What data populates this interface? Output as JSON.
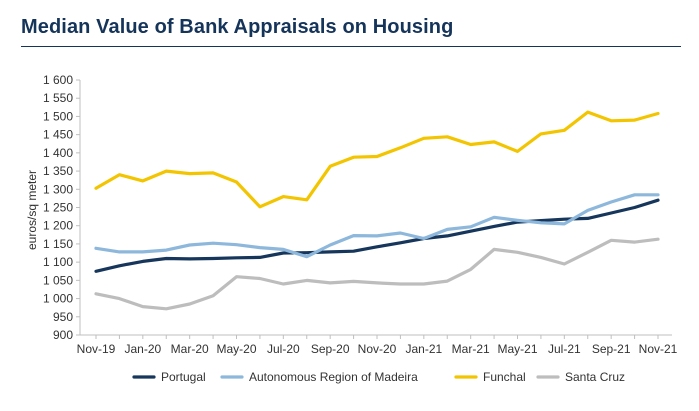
{
  "title": "Median Value of Bank Appraisals on Housing",
  "chart_data": {
    "type": "line",
    "title": "Median Value of Bank Appraisals on Housing",
    "ylabel": "euros/sq meter",
    "xlabel": "",
    "ylim": [
      900,
      1600
    ],
    "yticks": [
      900,
      950,
      1000,
      1050,
      1100,
      1150,
      1200,
      1250,
      1300,
      1350,
      1400,
      1450,
      1500,
      1550,
      1600
    ],
    "ytick_labels": [
      "900",
      "950",
      "1 000",
      "1 050",
      "1 100",
      "1 150",
      "1 200",
      "1 250",
      "1 300",
      "1 350",
      "1 400",
      "1 450",
      "1 500",
      "1 550",
      "1 600"
    ],
    "x": [
      "Nov-19",
      "Dec-19",
      "Jan-20",
      "Feb-20",
      "Mar-20",
      "Apr-20",
      "May-20",
      "Jun-20",
      "Jul-20",
      "Aug-20",
      "Sep-20",
      "Oct-20",
      "Nov-20",
      "Dec-20",
      "Jan-21",
      "Feb-21",
      "Mar-21",
      "Apr-21",
      "May-21",
      "Jun-21",
      "Jul-21",
      "Aug-21",
      "Sep-21",
      "Oct-21",
      "Nov-21"
    ],
    "xtick_labels": [
      "Nov-19",
      "Jan-20",
      "Mar-20",
      "May-20",
      "Jul-20",
      "Sep-20",
      "Nov-20",
      "Jan-21",
      "Mar-21",
      "May-21",
      "Jul-21",
      "Sep-21",
      "Nov-21"
    ],
    "grid": false,
    "legend_position": "bottom",
    "series": [
      {
        "name": "Portugal",
        "color": "#16365c",
        "values": [
          1075,
          1090,
          1102,
          1110,
          1109,
          1110,
          1112,
          1113,
          1125,
          1126,
          1128,
          1130,
          1142,
          1153,
          1165,
          1172,
          1185,
          1198,
          1210,
          1214,
          1218,
          1220,
          1235,
          1250,
          1270
        ]
      },
      {
        "name": "Autonomous Region of Madeira",
        "color": "#8db8dc",
        "values": [
          1138,
          1128,
          1128,
          1133,
          1147,
          1152,
          1148,
          1140,
          1135,
          1115,
          1147,
          1173,
          1172,
          1180,
          1165,
          1190,
          1197,
          1223,
          1215,
          1208,
          1205,
          1242,
          1265,
          1285,
          1285
        ]
      },
      {
        "name": "Funchal",
        "color": "#f2c500",
        "values": [
          1303,
          1340,
          1323,
          1350,
          1343,
          1345,
          1320,
          1252,
          1280,
          1271,
          1363,
          1388,
          1390,
          1414,
          1440,
          1444,
          1423,
          1430,
          1404,
          1452,
          1462,
          1512,
          1488,
          1490,
          1508
        ]
      },
      {
        "name": "Santa Cruz",
        "color": "#bdbdbd",
        "values": [
          1013,
          1000,
          978,
          972,
          985,
          1008,
          1060,
          1055,
          1040,
          1050,
          1043,
          1047,
          1043,
          1040,
          1040,
          1048,
          1080,
          1135,
          1127,
          1113,
          1095,
          1127,
          1160,
          1155,
          1163
        ]
      }
    ]
  }
}
